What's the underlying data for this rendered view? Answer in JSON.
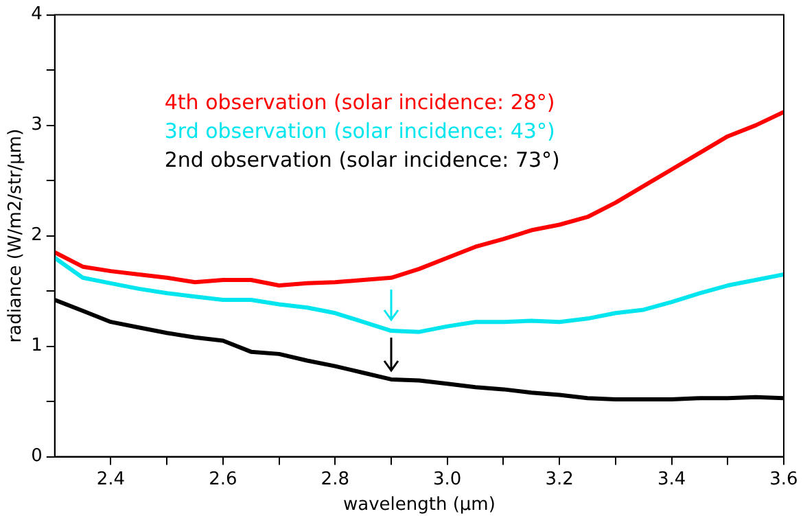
{
  "chart_data": {
    "type": "line",
    "xlabel": "wavelength (μm)",
    "ylabel": "radiance (W/m2/str/μm)",
    "legend": "top",
    "line_style": "solid",
    "grid": false,
    "x": [
      2.3,
      2.35,
      2.4,
      2.45,
      2.5,
      2.55,
      2.6,
      2.65,
      2.7,
      2.75,
      2.8,
      2.85,
      2.9,
      2.95,
      3.0,
      3.05,
      3.1,
      3.15,
      3.2,
      3.25,
      3.3,
      3.35,
      3.4,
      3.45,
      3.5,
      3.55,
      3.6
    ],
    "xlim": [
      2.3,
      3.6
    ],
    "xticks": [
      {
        "value": 2.4,
        "label": "2.4"
      },
      {
        "value": 2.5,
        "label": null
      },
      {
        "value": 2.6,
        "label": "2.6"
      },
      {
        "value": 2.7,
        "label": null
      },
      {
        "value": 2.8,
        "label": "2.8"
      },
      {
        "value": 2.9,
        "label": null
      },
      {
        "value": 3.0,
        "label": "3.0"
      },
      {
        "value": 3.1,
        "label": null
      },
      {
        "value": 3.2,
        "label": "3.2"
      },
      {
        "value": 3.3,
        "label": null
      },
      {
        "value": 3.4,
        "label": "3.4"
      },
      {
        "value": 3.5,
        "label": null
      },
      {
        "value": 3.6,
        "label": "3.6"
      }
    ],
    "ylim": [
      0,
      4
    ],
    "yticks": [
      0,
      {
        "value": 0.5,
        "label": null
      },
      1,
      {
        "value": 1.5,
        "label": null
      },
      2,
      {
        "value": 2.5,
        "label": null
      },
      3,
      {
        "value": 3.5,
        "label": null
      },
      4
    ],
    "series": [
      {
        "name": "4th observation (solar incidence: 28°)",
        "color": "#ff0000",
        "values": [
          1.85,
          1.72,
          1.68,
          1.65,
          1.62,
          1.58,
          1.6,
          1.6,
          1.55,
          1.57,
          1.58,
          1.6,
          1.62,
          1.7,
          1.8,
          1.9,
          1.97,
          2.05,
          2.1,
          2.17,
          2.3,
          2.45,
          2.6,
          2.75,
          2.9,
          3.0,
          3.12
        ]
      },
      {
        "name": "3rd observation (solar incidence: 43°)",
        "color": "#00e5ee",
        "values": [
          1.8,
          1.62,
          1.57,
          1.52,
          1.48,
          1.45,
          1.42,
          1.42,
          1.38,
          1.35,
          1.3,
          1.22,
          1.14,
          1.13,
          1.18,
          1.22,
          1.22,
          1.23,
          1.22,
          1.25,
          1.3,
          1.33,
          1.4,
          1.48,
          1.55,
          1.6,
          1.65
        ]
      },
      {
        "name": "2nd observation (solar incidence: 73°)",
        "color": "#000000",
        "values": [
          1.42,
          1.32,
          1.22,
          1.17,
          1.12,
          1.08,
          1.05,
          0.95,
          0.93,
          0.87,
          0.82,
          0.76,
          0.7,
          0.69,
          0.66,
          0.63,
          0.61,
          0.58,
          0.56,
          0.53,
          0.52,
          0.52,
          0.52,
          0.53,
          0.53,
          0.54,
          0.53
        ]
      }
    ]
  }
}
